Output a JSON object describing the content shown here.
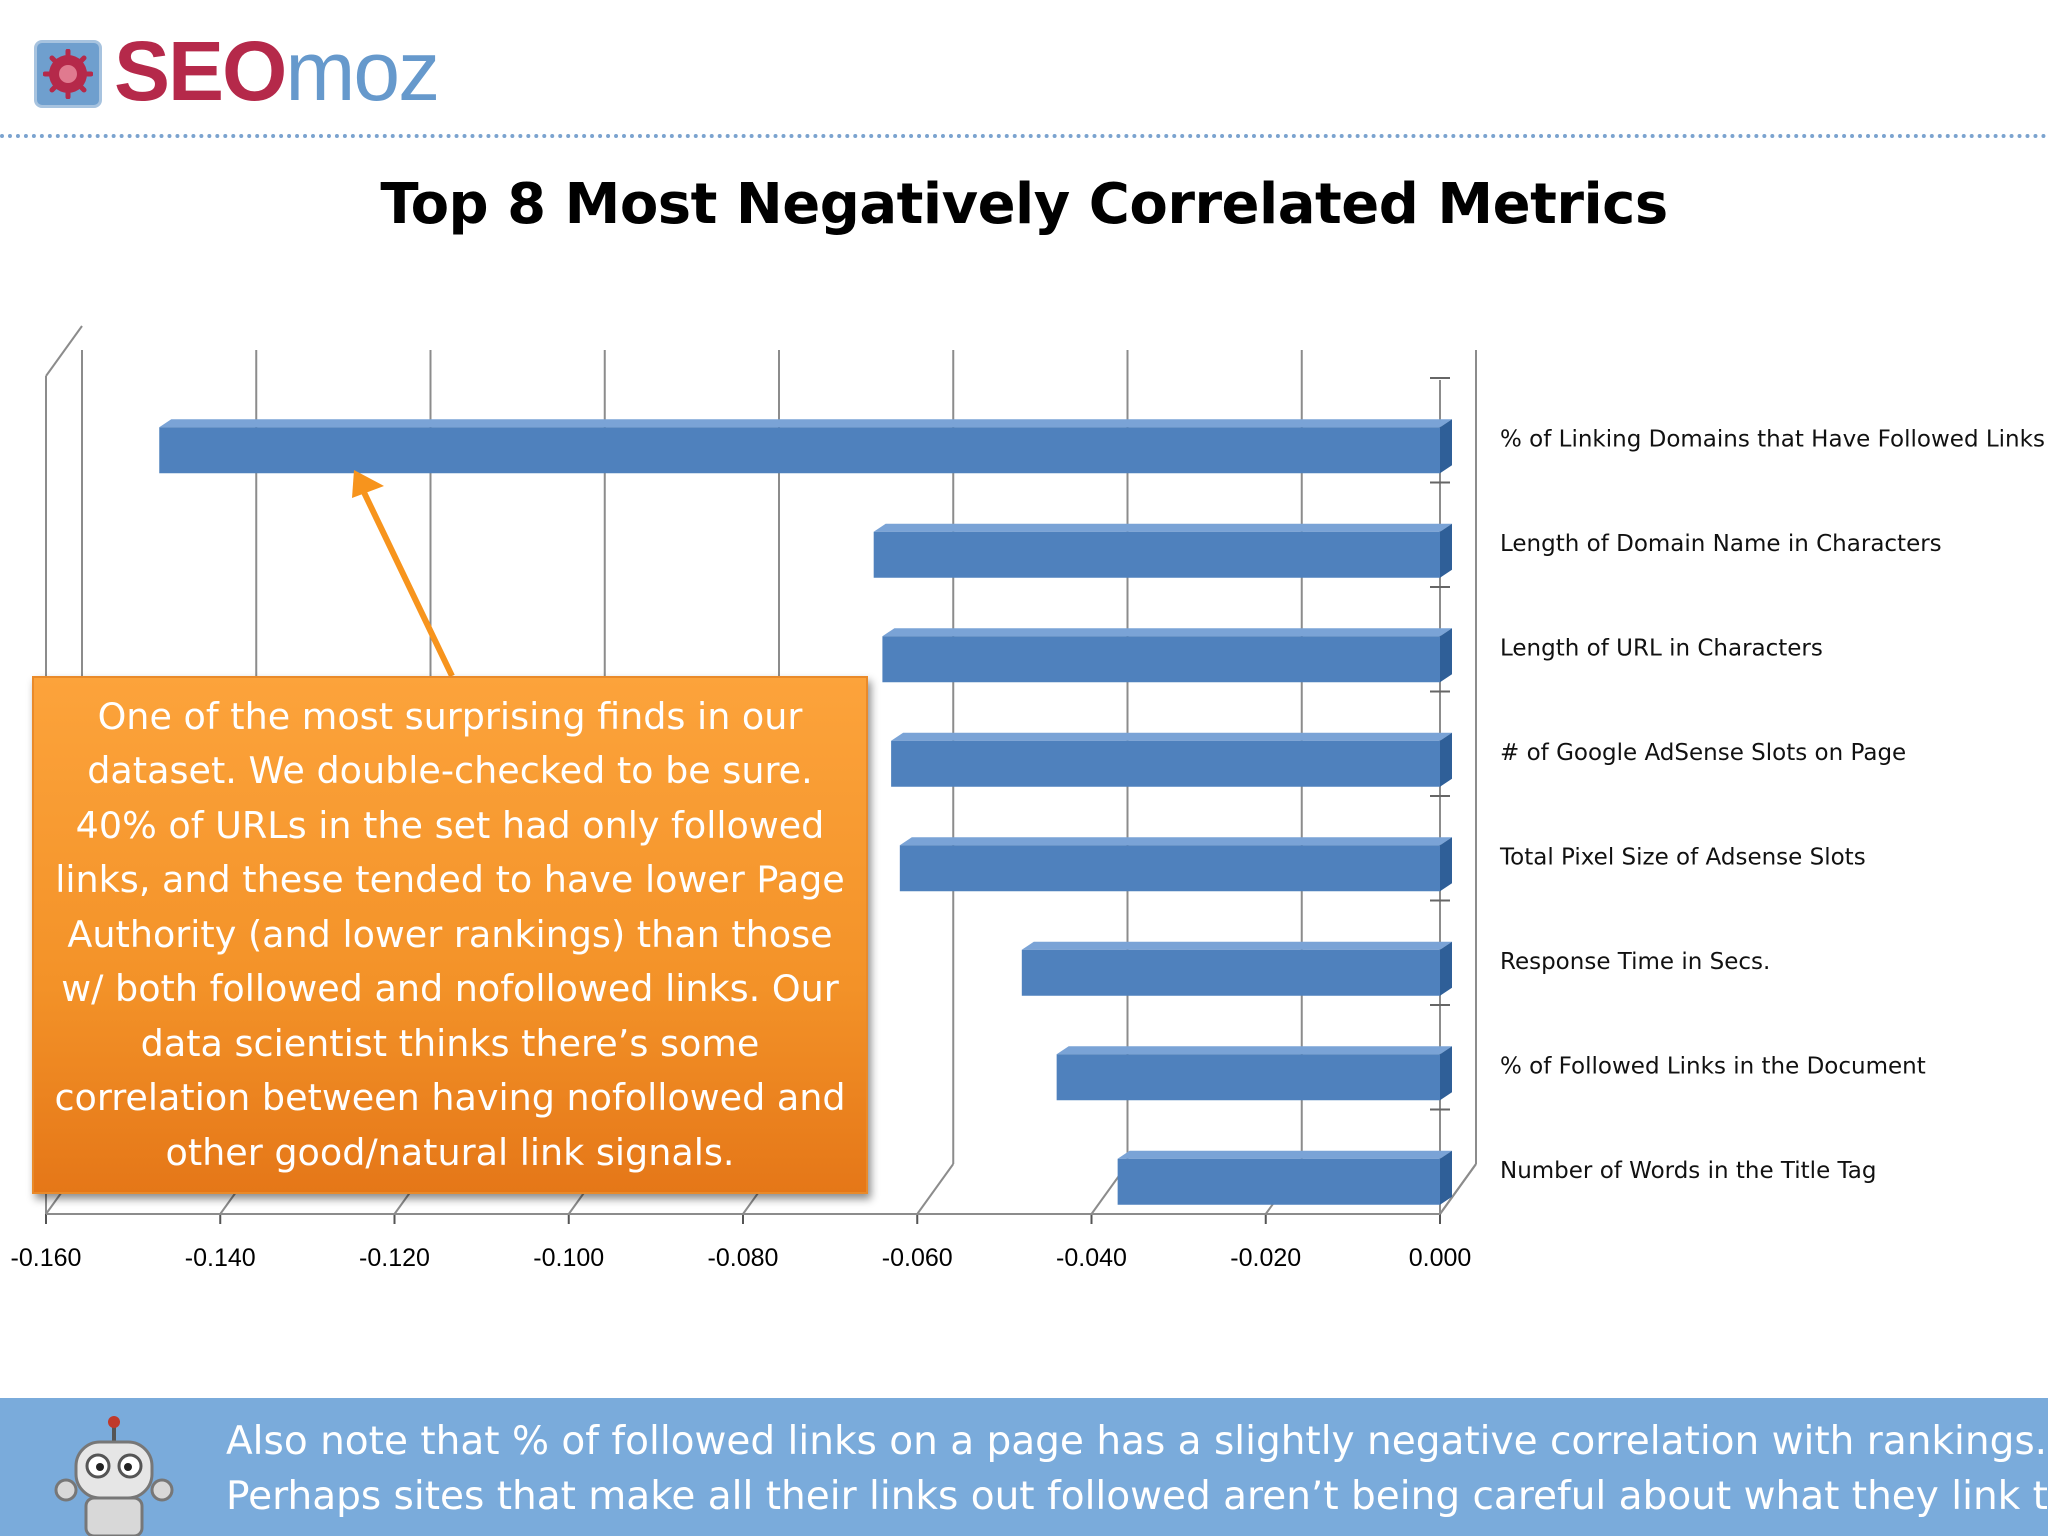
{
  "logo": {
    "seo": "SEO",
    "moz": "moz"
  },
  "title": "Top 8 Most Negatively Correlated Metrics",
  "callout": {
    "text": "One of the most surprising finds in our dataset. We double-checked to be sure. 40% of URLs in the set had only followed links, and these tended to have lower Page Authority (and lower rankings) than those w/ both followed and nofollowed links. Our data scientist thinks there’s some correlation between having nofollowed and other good/natural link signals."
  },
  "footer": {
    "line1": "Also note that % of followed links on a page has a slightly negative correlation with rankings.",
    "line2": "Perhaps sites that make all their links out followed aren’t being careful about what they link to?"
  },
  "colors": {
    "bar": "#4f81bd",
    "callout": "#f7941d",
    "footer": "#7aabdb",
    "brand_red": "#b5294a",
    "brand_blue": "#6699cc"
  },
  "chart_data": {
    "type": "bar",
    "orientation": "horizontal",
    "style": "3d-clustered",
    "title": "Top 8 Most Negatively Correlated Metrics",
    "categories": [
      "% of Linking Domains that Have Followed Links",
      "Length of Domain Name in Characters",
      "Length of URL in Characters",
      "# of Google AdSense  Slots on Page",
      "Total Pixel Size of Adsense  Slots",
      "Response Time in Secs.",
      "% of Followed Links in the Document",
      "Number of Words in the Title Tag"
    ],
    "values": [
      -0.147,
      -0.065,
      -0.064,
      -0.063,
      -0.062,
      -0.048,
      -0.044,
      -0.037
    ],
    "xlim": [
      -0.16,
      0.0
    ],
    "ticks": [
      "-0.160",
      "-0.140",
      "-0.120",
      "-0.100",
      "-0.080",
      "-0.060",
      "-0.040",
      "-0.020",
      "0.000"
    ],
    "xlabel": "",
    "ylabel": "",
    "grid": true,
    "legend": "none"
  }
}
